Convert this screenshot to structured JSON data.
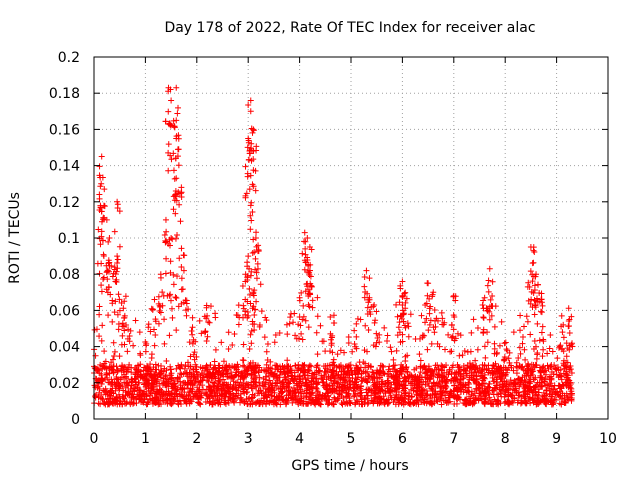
{
  "chart_data": {
    "type": "scatter",
    "title": "Day 178 of 2022, Rate Of TEC Index for receiver alac",
    "xlabel": "GPS time / hours",
    "ylabel": "ROTI / TECUs",
    "xlim": [
      0,
      10
    ],
    "ylim": [
      0,
      0.2
    ],
    "xticks": [
      "0",
      "1",
      "2",
      "3",
      "4",
      "5",
      "6",
      "7",
      "8",
      "9",
      "10"
    ],
    "yticks": [
      "0",
      "0.02",
      "0.04",
      "0.06",
      "0.08",
      "0.1",
      "0.12",
      "0.14",
      "0.16",
      "0.18",
      "0.2"
    ],
    "grid": true,
    "marker": "+",
    "color": "#ff0000",
    "data_range_x": [
      0,
      9.3
    ],
    "baseline_band": [
      0.008,
      0.03
    ],
    "series": [
      {
        "name": "ROTI",
        "peaks": [
          {
            "x": 0.15,
            "y": 0.145
          },
          {
            "x": 0.14,
            "y": 0.13
          },
          {
            "x": 0.2,
            "y": 0.127
          },
          {
            "x": 0.25,
            "y": 0.11
          },
          {
            "x": 0.3,
            "y": 0.1
          },
          {
            "x": 0.45,
            "y": 0.12
          },
          {
            "x": 0.45,
            "y": 0.09
          },
          {
            "x": 0.6,
            "y": 0.057
          },
          {
            "x": 1.45,
            "y": 0.183
          },
          {
            "x": 1.6,
            "y": 0.183
          },
          {
            "x": 1.5,
            "y": 0.176
          },
          {
            "x": 1.6,
            "y": 0.165
          },
          {
            "x": 1.6,
            "y": 0.155
          },
          {
            "x": 1.6,
            "y": 0.133
          },
          {
            "x": 1.7,
            "y": 0.128
          },
          {
            "x": 1.4,
            "y": 0.11
          },
          {
            "x": 1.5,
            "y": 0.1
          },
          {
            "x": 1.3,
            "y": 0.08
          },
          {
            "x": 1.75,
            "y": 0.082
          },
          {
            "x": 2.2,
            "y": 0.057
          },
          {
            "x": 3.05,
            "y": 0.176
          },
          {
            "x": 3.05,
            "y": 0.17
          },
          {
            "x": 3.0,
            "y": 0.155
          },
          {
            "x": 3.1,
            "y": 0.16
          },
          {
            "x": 3.05,
            "y": 0.118
          },
          {
            "x": 3.15,
            "y": 0.1
          },
          {
            "x": 3.0,
            "y": 0.09
          },
          {
            "x": 2.95,
            "y": 0.08
          },
          {
            "x": 3.1,
            "y": 0.07
          },
          {
            "x": 4.1,
            "y": 0.103
          },
          {
            "x": 4.15,
            "y": 0.1
          },
          {
            "x": 4.2,
            "y": 0.095
          },
          {
            "x": 4.2,
            "y": 0.082
          },
          {
            "x": 4.0,
            "y": 0.067
          },
          {
            "x": 4.6,
            "y": 0.047
          },
          {
            "x": 5.3,
            "y": 0.082
          },
          {
            "x": 5.45,
            "y": 0.063
          },
          {
            "x": 6.0,
            "y": 0.076
          },
          {
            "x": 6.0,
            "y": 0.063
          },
          {
            "x": 6.5,
            "y": 0.075
          },
          {
            "x": 6.6,
            "y": 0.07
          },
          {
            "x": 7.0,
            "y": 0.068
          },
          {
            "x": 7.7,
            "y": 0.083
          },
          {
            "x": 7.6,
            "y": 0.067
          },
          {
            "x": 8.5,
            "y": 0.095
          },
          {
            "x": 8.55,
            "y": 0.093
          },
          {
            "x": 8.6,
            "y": 0.08
          },
          {
            "x": 8.7,
            "y": 0.066
          },
          {
            "x": 9.1,
            "y": 0.057
          },
          {
            "x": 9.25,
            "y": 0.055
          }
        ]
      }
    ]
  }
}
